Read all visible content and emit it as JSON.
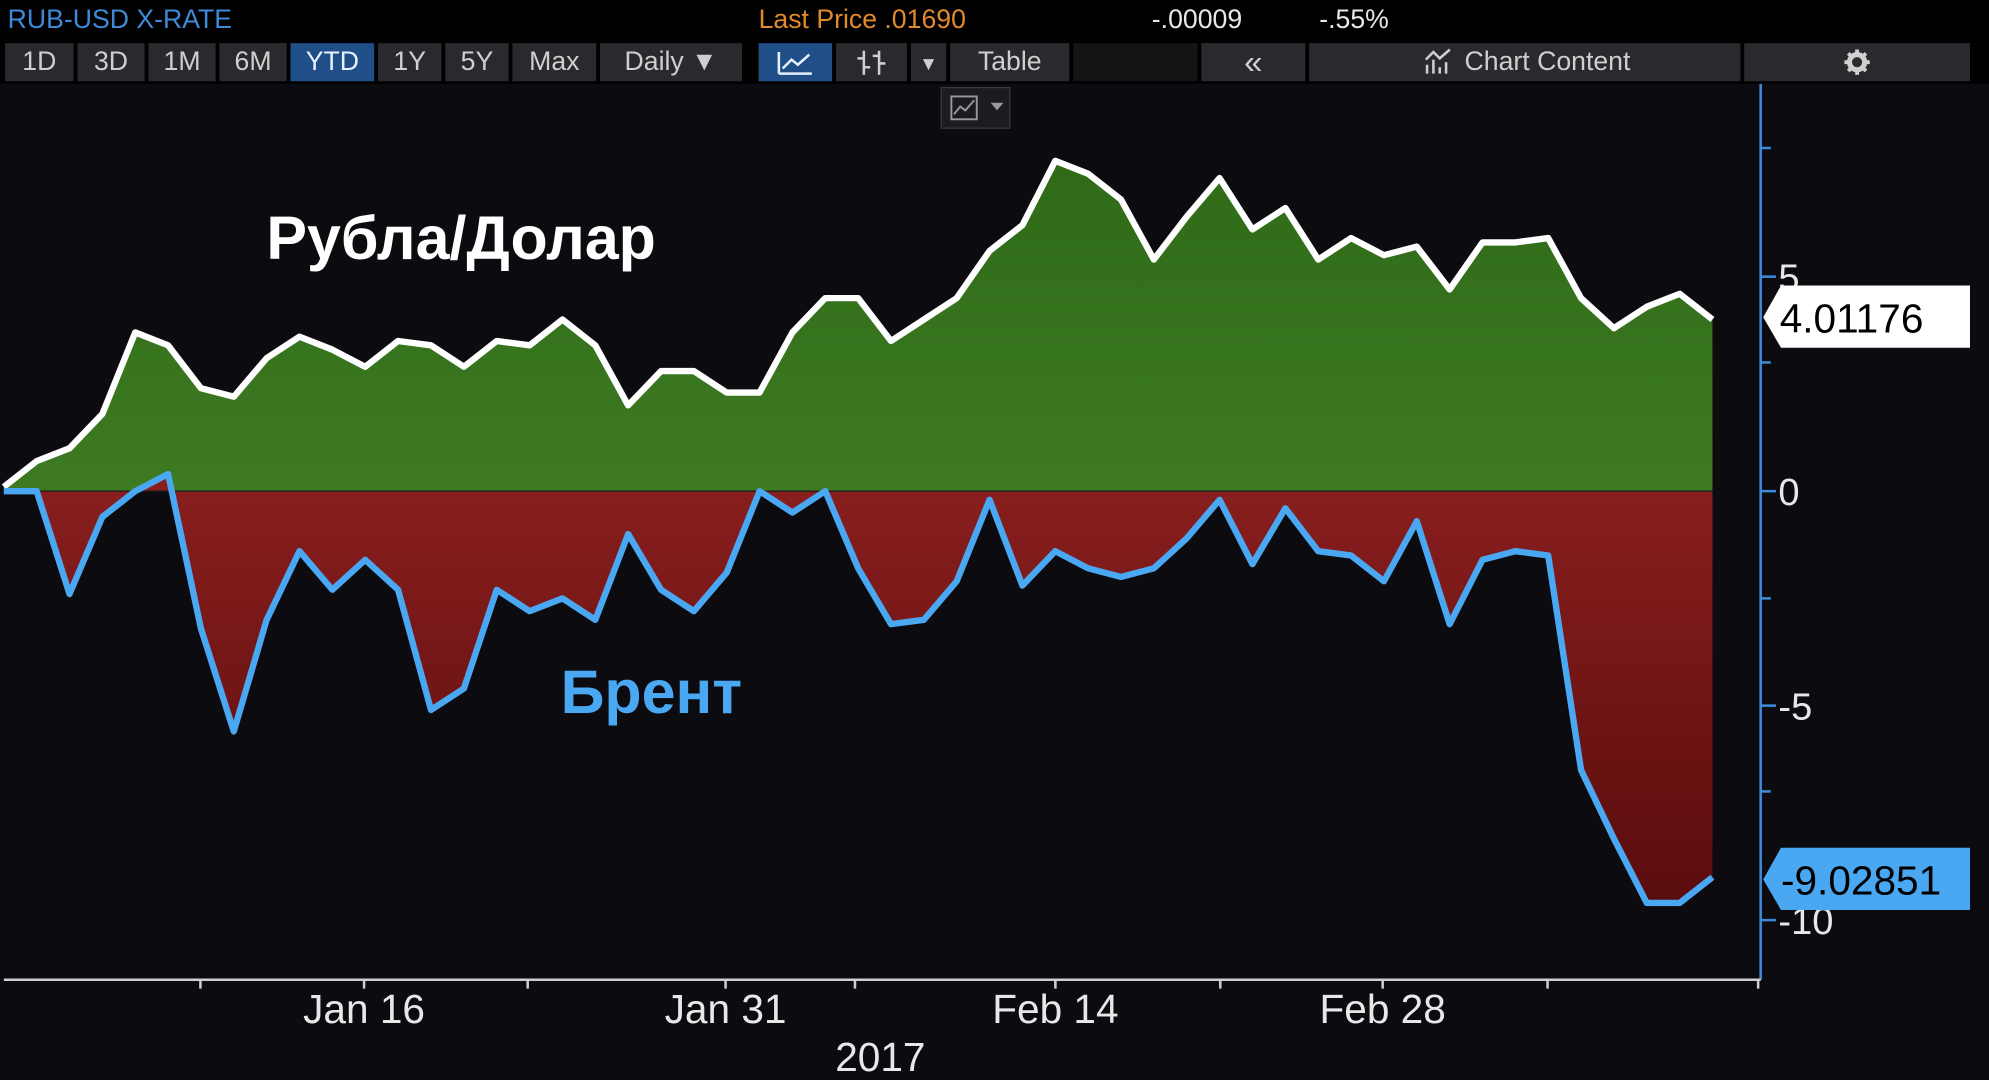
{
  "header": {
    "security": "RUB-USD X-RATE",
    "last_price": "Last Price .01690",
    "net_change": "-.00009",
    "pct_change": "-.55%"
  },
  "toolbar": {
    "periods": [
      "1D",
      "3D",
      "1M",
      "6M",
      "YTD",
      "1Y",
      "5Y",
      "Max"
    ],
    "active_period": "YTD",
    "frequency": "Daily",
    "frequency_caret": "▼",
    "line_icon": "line-chart-icon",
    "bars_icon": "bar-chart-icon",
    "dropdown_caret": "▼",
    "table_label": "Table",
    "collapse_label": "«",
    "chart_content_label": "Chart Content",
    "chart_content_icon": "chart-content-icon",
    "settings_icon": "gear-icon",
    "mini_chart_icon": "mini-line-chart-icon"
  },
  "colors": {
    "ruble_line": "#ffffff",
    "ruble_fill": "#3a6b1e",
    "brent_line": "#4aa8f2",
    "brent_fill": "#7a1b1b",
    "axis": "#3f8ad8",
    "background": "#0b0b10"
  },
  "chart_data": {
    "type": "area",
    "year_label": "2017",
    "x_tick_labels": [
      "Jan 16",
      "Jan 31",
      "Feb 14",
      "Feb 28"
    ],
    "y_tick_labels": [
      "5",
      "0",
      "-5",
      "-10"
    ],
    "ylim": [
      -11,
      9
    ],
    "series": [
      {
        "name": "Рубла/Долар",
        "last_value_label": "4.01176",
        "values": [
          0.1,
          0.7,
          1.0,
          1.8,
          3.7,
          3.4,
          2.4,
          2.2,
          3.1,
          3.6,
          3.3,
          2.9,
          3.5,
          3.4,
          2.9,
          3.5,
          3.4,
          4.0,
          3.4,
          2.0,
          2.8,
          2.8,
          2.3,
          2.3,
          3.7,
          4.5,
          4.5,
          3.5,
          4.0,
          4.5,
          5.6,
          6.2,
          7.7,
          7.4,
          6.8,
          5.4,
          6.4,
          7.3,
          6.1,
          6.6,
          5.4,
          5.9,
          5.5,
          5.7,
          4.7,
          5.8,
          5.8,
          5.9,
          4.5,
          3.8,
          4.3,
          4.6,
          4.0
        ]
      },
      {
        "name": "Брент",
        "last_value_label": "-9.02851",
        "values": [
          0.0,
          0.0,
          -2.4,
          -0.6,
          0.0,
          0.4,
          -3.2,
          -5.6,
          -3.0,
          -1.4,
          -2.3,
          -1.6,
          -2.3,
          -5.1,
          -4.6,
          -2.3,
          -2.8,
          -2.5,
          -3.0,
          -1.0,
          -2.3,
          -2.8,
          -1.9,
          0.0,
          -0.5,
          0.0,
          -1.8,
          -3.1,
          -3.0,
          -2.1,
          -0.2,
          -2.2,
          -1.4,
          -1.8,
          -2.0,
          -1.8,
          -1.1,
          -0.2,
          -1.7,
          -0.4,
          -1.4,
          -1.5,
          -2.1,
          -0.7,
          -3.1,
          -1.6,
          -1.4,
          -1.5,
          -6.5,
          -8.1,
          -9.6,
          -9.6,
          -9.0
        ]
      }
    ]
  }
}
